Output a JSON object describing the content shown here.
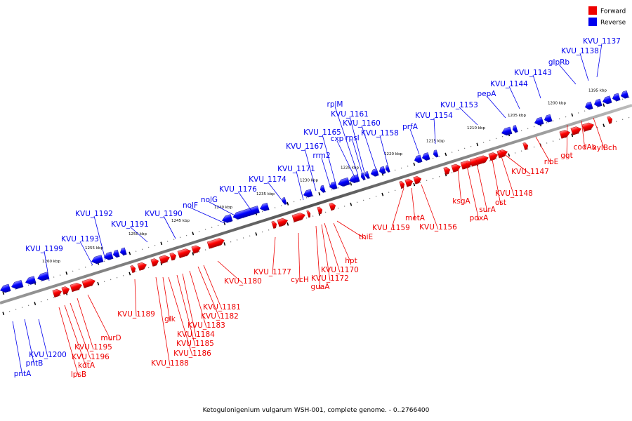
{
  "caption": "Ketogulonigenium vulgarum WSH-001, complete genome. - 0..2766400",
  "legend": [
    {
      "key": "forward",
      "label": "Forward",
      "color": "#ee0000"
    },
    {
      "key": "reverse",
      "label": "Reverse",
      "color": "#0000ee"
    }
  ],
  "colors": {
    "forward": "#ee0000",
    "reverse": "#0000ee",
    "backbone": "#777777"
  },
  "scale_labels": [
    "1195 kbp",
    "1200 kbp",
    "1205 kbp",
    "1210 kbp",
    "1215 kbp",
    "1220 kbp",
    "1225 kbp",
    "1230 kbp",
    "1235 kbp",
    "1240 kbp",
    "1245 kbp",
    "1250 kbp",
    "1255 kbp",
    "1260 kbp"
  ],
  "reverse_labels": [
    "KVU_1137",
    "KVU_1138",
    "glpRb",
    "KVU_1143",
    "KVU_1144",
    "pepA",
    "KVU_1153",
    "KVU_1154",
    "prfA",
    "KVU_1158",
    "KVU_1160",
    "KVU_1161",
    "rplM",
    "rpsI",
    "cxp",
    "KVU_1165",
    "rrm2",
    "KVU_1167",
    "KVU_1171",
    "KVU_1174",
    "KVU_1176",
    "nolG",
    "nolF",
    "KVU_1190",
    "KVU_1191",
    "KVU_1192",
    "KVU_1193",
    "KVU_1199",
    "KVU_1200",
    "pntB",
    "pntA"
  ],
  "forward_labels": [
    "xylBch",
    "codAb",
    "ggt",
    "ribE",
    "KVU_1147",
    "KVU_1148",
    "ost",
    "surA",
    "pdxA",
    "ksgA",
    "KVU_1156",
    "metA",
    "KVU_1159",
    "thiE",
    "hpt",
    "KVU_1170",
    "KVU_1172",
    "guaA",
    "cycH",
    "KVU_1177",
    "KVU_1180",
    "KVU_1181",
    "KVU_1182",
    "KVU_1183",
    "KVU_1184",
    "KVU_1185",
    "KVU_1186",
    "KVU_1188",
    "glk",
    "KVU_1189",
    "murD",
    "KVU_1195",
    "KVU_1196",
    "kdtA",
    "lpsB"
  ]
}
